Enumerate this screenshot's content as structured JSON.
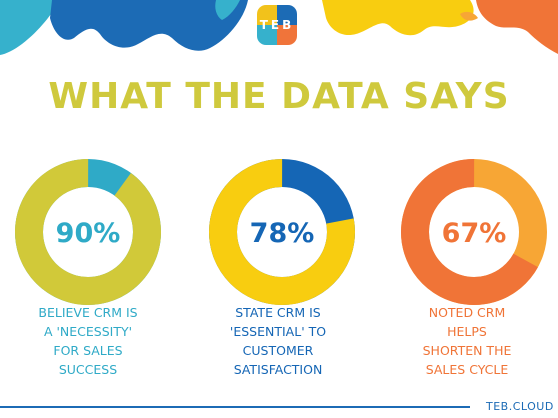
{
  "logo": {
    "text": "TEB",
    "colors": [
      "#f2c21b",
      "#1c6bb5",
      "#36b1cc",
      "#f0743a"
    ]
  },
  "title": "WHAT THE DATA SAYS",
  "stats": [
    {
      "value": 90,
      "label": "90%",
      "caption_lines": [
        "BELIEVE CRM IS",
        "A 'NECESSITY'",
        "FOR SALES",
        "SUCCESS"
      ],
      "fill_color": "#d1c939",
      "remainder_color": "#2faac7",
      "text_color": "#2faac7"
    },
    {
      "value": 78,
      "label": "78%",
      "caption_lines": [
        "STATE CRM IS",
        "'ESSENTIAL' TO",
        "CUSTOMER",
        "SATISFACTION"
      ],
      "fill_color": "#f8cd10",
      "remainder_color": "#1566b5",
      "text_color": "#1566b5"
    },
    {
      "value": 67,
      "label": "67%",
      "caption_lines": [
        "NOTED CRM",
        "HELPS",
        "SHORTEN THE",
        "SALES CYCLE"
      ],
      "fill_color": "#f07437",
      "remainder_color": "#f7a635",
      "text_color": "#f07437"
    }
  ],
  "footer": {
    "text": "TEB.CLOUD",
    "color": "#1c6bb5"
  }
}
